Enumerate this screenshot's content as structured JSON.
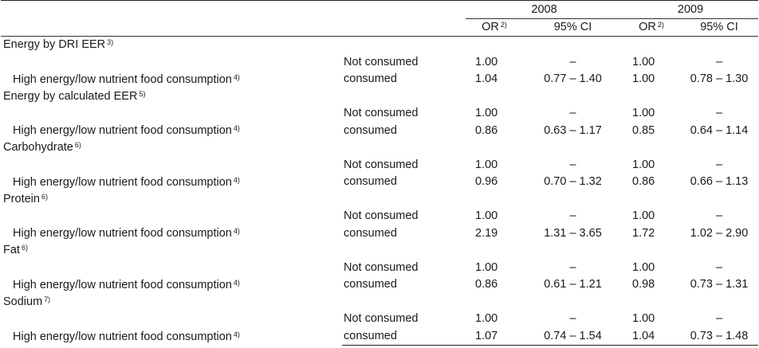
{
  "header": {
    "year1": "2008",
    "year2": "2009",
    "or_label": "OR",
    "or_sup": "2)",
    "ci_label": "95% CI"
  },
  "sections": [
    {
      "title": "Energy by DRI EER",
      "title_sup": "3)",
      "row_label": "High energy/low nutrient food consumption",
      "row_sup": "4)",
      "rows": [
        {
          "group": "Not consumed",
          "or2008": "1.00",
          "ci2008": "–",
          "or2009": "1.00",
          "ci2009": "–"
        },
        {
          "group": "consumed",
          "or2008": "1.04",
          "ci2008": "0.77 – 1.40",
          "or2009": "1.00",
          "ci2009": "0.78 – 1.30"
        }
      ]
    },
    {
      "title": "Energy by calculated EER",
      "title_sup": "5)",
      "row_label": "High energy/low nutrient food consumption",
      "row_sup": "4)",
      "rows": [
        {
          "group": "Not consumed",
          "or2008": "1.00",
          "ci2008": "–",
          "or2009": "1.00",
          "ci2009": "–"
        },
        {
          "group": "consumed",
          "or2008": "0.86",
          "ci2008": "0.63 – 1.17",
          "or2009": "0.85",
          "ci2009": "0.64 – 1.14"
        }
      ]
    },
    {
      "title": "Carbohydrate",
      "title_sup": "6)",
      "row_label": "High energy/low nutrient food consumption",
      "row_sup": "4)",
      "rows": [
        {
          "group": "Not consumed",
          "or2008": "1.00",
          "ci2008": "–",
          "or2009": "1.00",
          "ci2009": "–"
        },
        {
          "group": "consumed",
          "or2008": "0.96",
          "ci2008": "0.70 – 1.32",
          "or2009": "0.86",
          "ci2009": "0.66 – 1.13"
        }
      ]
    },
    {
      "title": "Protein",
      "title_sup": "6)",
      "row_label": "High energy/low nutrient food consumption",
      "row_sup": "4)",
      "rows": [
        {
          "group": "Not consumed",
          "or2008": "1.00",
          "ci2008": "–",
          "or2009": "1.00",
          "ci2009": "–"
        },
        {
          "group": "consumed",
          "or2008": "2.19",
          "ci2008": "1.31 – 3.65",
          "or2009": "1.72",
          "ci2009": "1.02 – 2.90"
        }
      ]
    },
    {
      "title": "Fat",
      "title_sup": "6)",
      "row_label": "High energy/low nutrient food consumption",
      "row_sup": "4)",
      "rows": [
        {
          "group": "Not consumed",
          "or2008": "1.00",
          "ci2008": "–",
          "or2009": "1.00",
          "ci2009": "–"
        },
        {
          "group": "consumed",
          "or2008": "0.86",
          "ci2008": "0.61 – 1.21",
          "or2009": "0.98",
          "ci2009": "0.73 – 1.31"
        }
      ]
    },
    {
      "title": "Sodium",
      "title_sup": "7)",
      "row_label": "High energy/low nutrient food consumption",
      "row_sup": "4)",
      "rows": [
        {
          "group": "Not consumed",
          "or2008": "1.00",
          "ci2008": "–",
          "or2009": "1.00",
          "ci2009": "–"
        },
        {
          "group": "consumed",
          "or2008": "1.07",
          "ci2008": "0.74 – 1.54",
          "or2009": "1.04",
          "ci2009": "0.73 – 1.48"
        }
      ]
    }
  ]
}
